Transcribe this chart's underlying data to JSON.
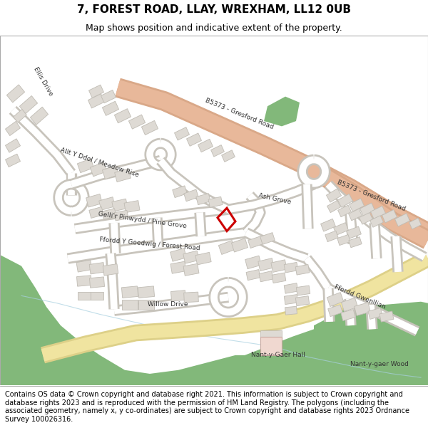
{
  "title_line1": "7, FOREST ROAD, LLAY, WREXHAM, LL12 0UB",
  "title_line2": "Map shows position and indicative extent of the property.",
  "footer_text": "Contains OS data © Crown copyright and database right 2021. This information is subject to Crown copyright and database rights 2023 and is reproduced with the permission of HM Land Registry. The polygons (including the associated geometry, namely x, y co-ordinates) are subject to Crown copyright and database rights 2023 Ordnance Survey 100026316.",
  "map_bg": "#f5f3ef",
  "road_main_color": "#e8b89a",
  "road_main_outline": "#d9a888",
  "road_minor_color": "#ffffff",
  "road_minor_outline": "#c8c4bc",
  "green_color": "#82b87a",
  "building_color": "#dedad4",
  "building_outline": "#c0bcb4",
  "plot_color": "#cc0000",
  "road_yellow_color": "#f0e4a0",
  "road_yellow_outline": "#ddd088",
  "title_fontsize": 11,
  "subtitle_fontsize": 9,
  "footer_fontsize": 7.0,
  "label_fontsize": 6.5,
  "label_color": "#333333"
}
